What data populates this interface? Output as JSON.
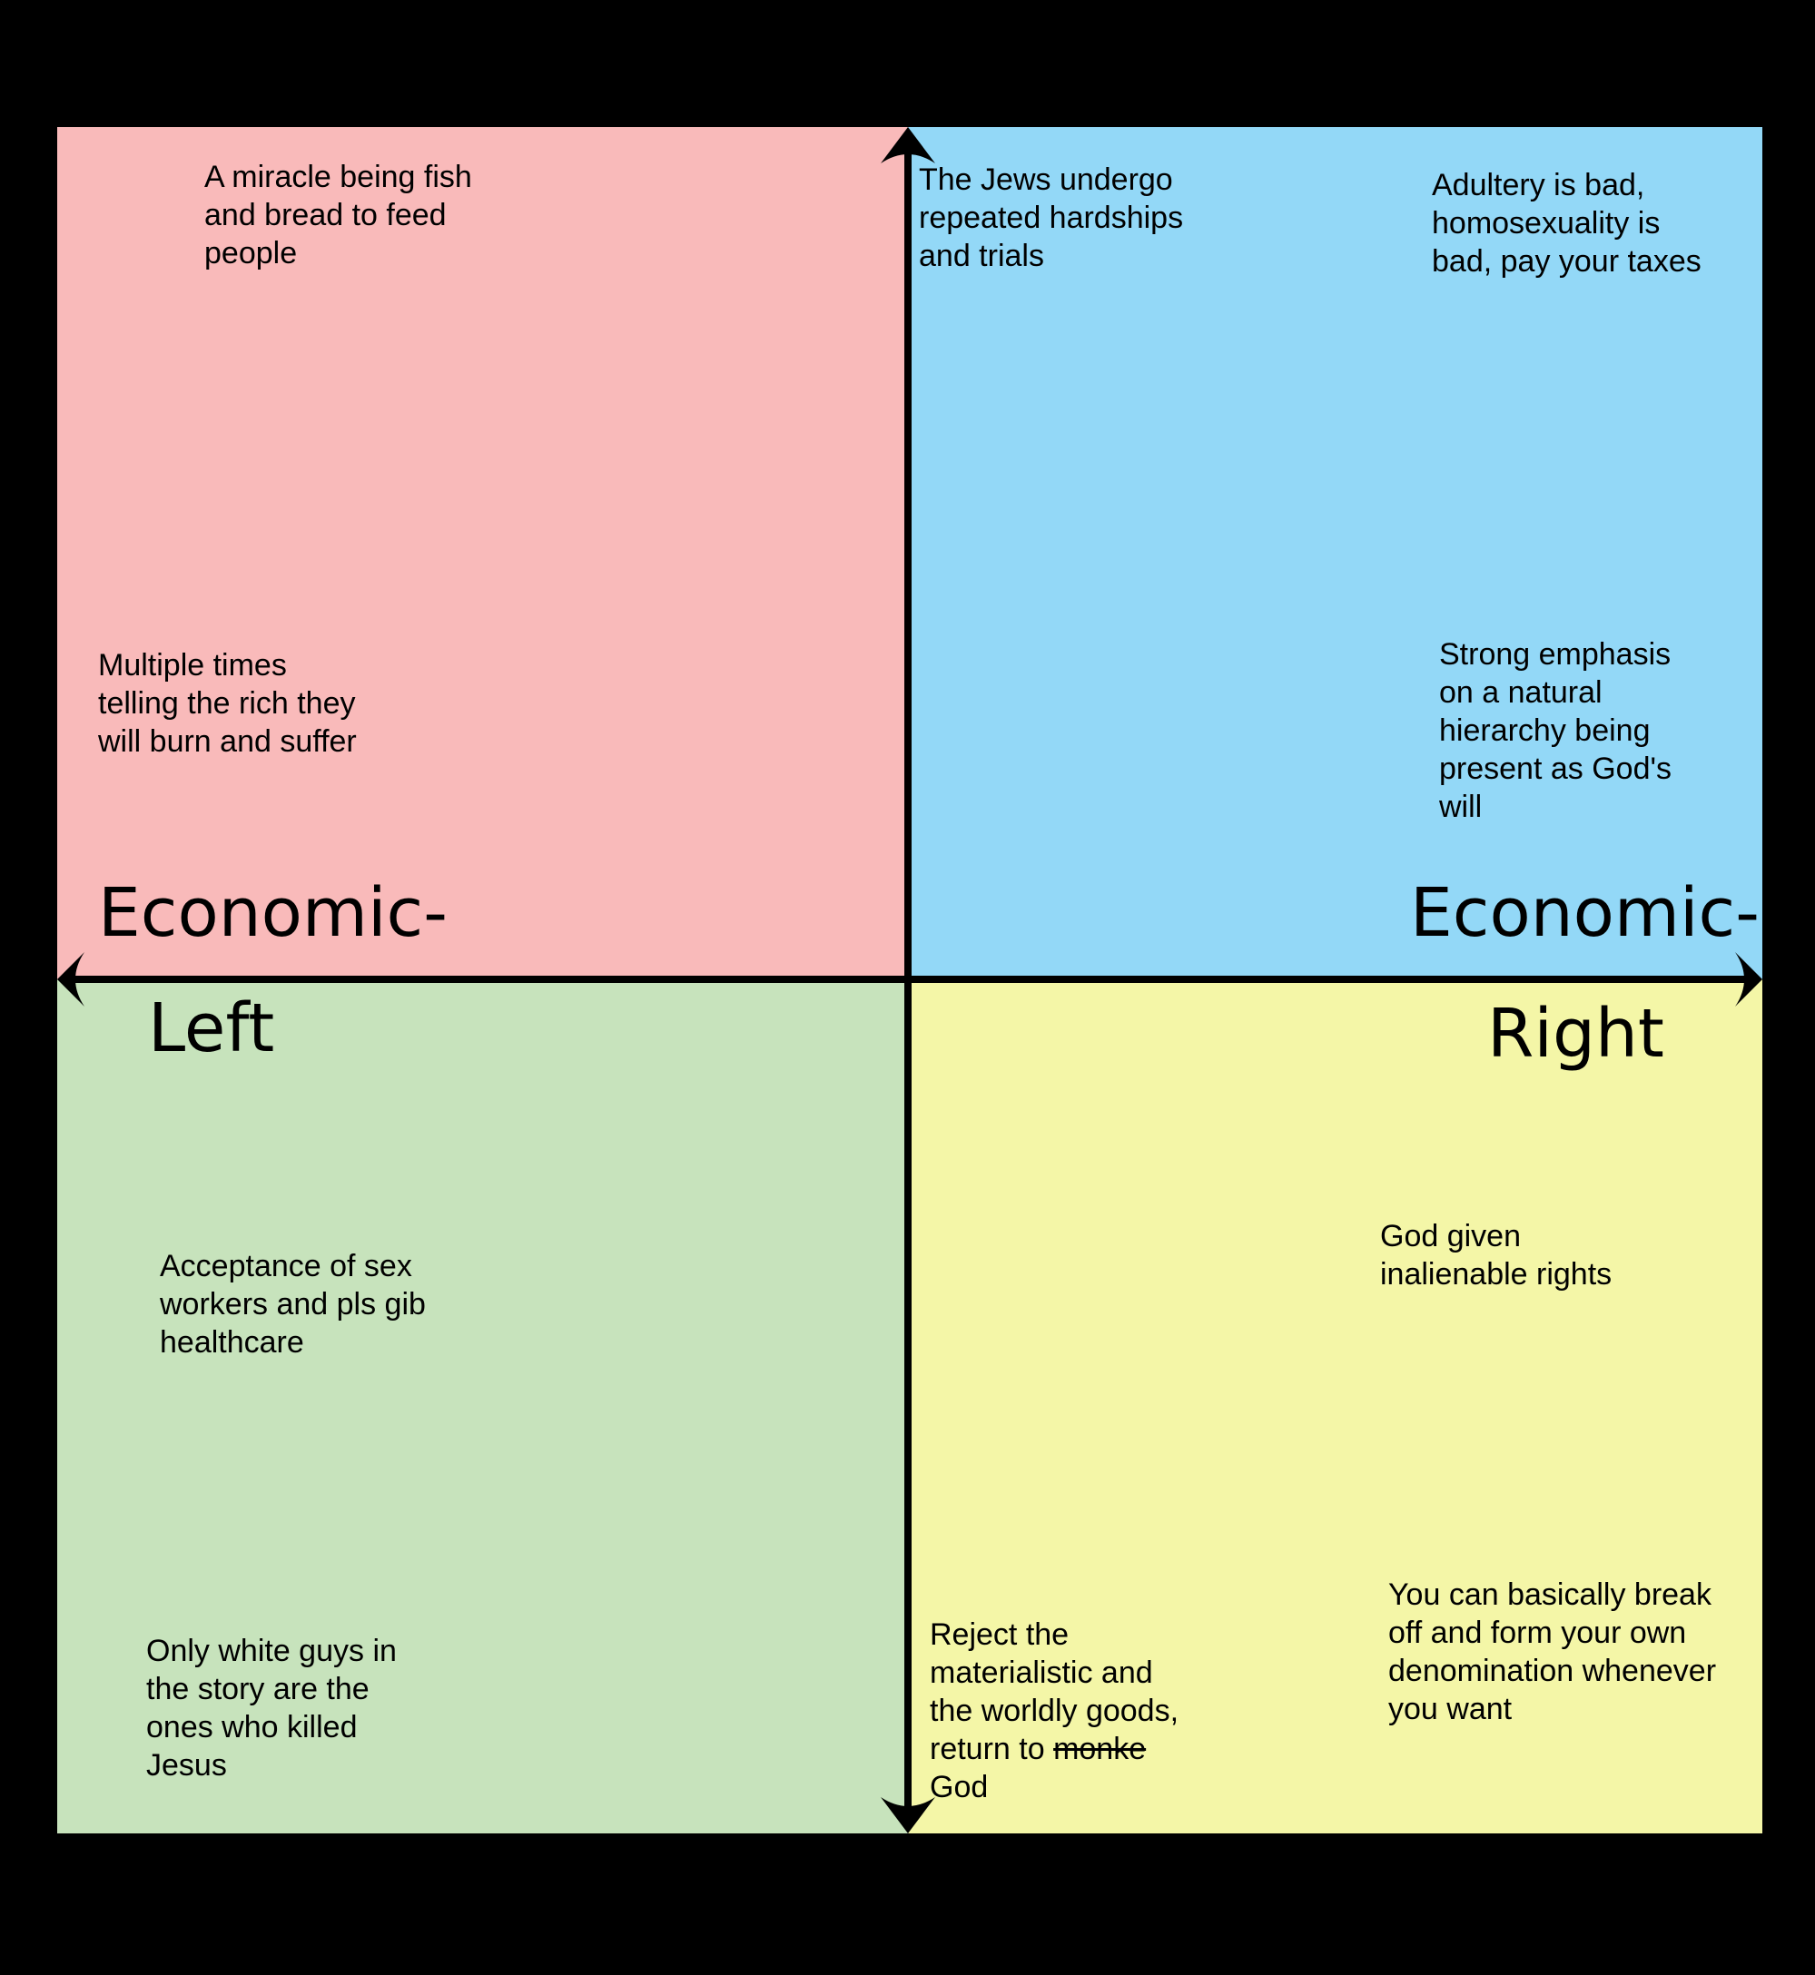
{
  "colors": {
    "background": "#000000",
    "top_left": "#f9baba",
    "top_right": "#93d8f7",
    "bottom_left": "#c7e3bc",
    "bottom_right": "#f4f6a7",
    "axis": "#000000"
  },
  "axis_labels": {
    "left_line1": "Economic-",
    "left_line2": "Left",
    "right_line1": "Economic-",
    "right_line2": "Right"
  },
  "quadrants": {
    "top_left": {
      "notes": [
        "A miracle being fish\nand bread to feed\npeople",
        "Multiple times\ntelling the rich they\nwill burn and suffer"
      ]
    },
    "top_right": {
      "notes": [
        "The Jews undergo\nrepeated hardships\nand trials",
        "Adultery is bad,\nhomosexuality is\nbad, pay your taxes",
        "Strong emphasis\non a natural\nhierarchy being\npresent as God's\nwill"
      ]
    },
    "bottom_left": {
      "notes": [
        "Acceptance of sex\nworkers and pls gib\nhealthcare",
        "Only white guys in\nthe story are the\nones who killed\nJesus"
      ]
    },
    "bottom_right": {
      "notes": [
        "God given\ninalienable rights",
        "You can basically break\noff and form your own\ndenomination whenever\nyou want"
      ],
      "materialism_note": {
        "text": "Reject the\nmaterialistic and\nthe worldly goods,\nreturn to ",
        "struck": "monke",
        "last_line": "God"
      }
    }
  }
}
